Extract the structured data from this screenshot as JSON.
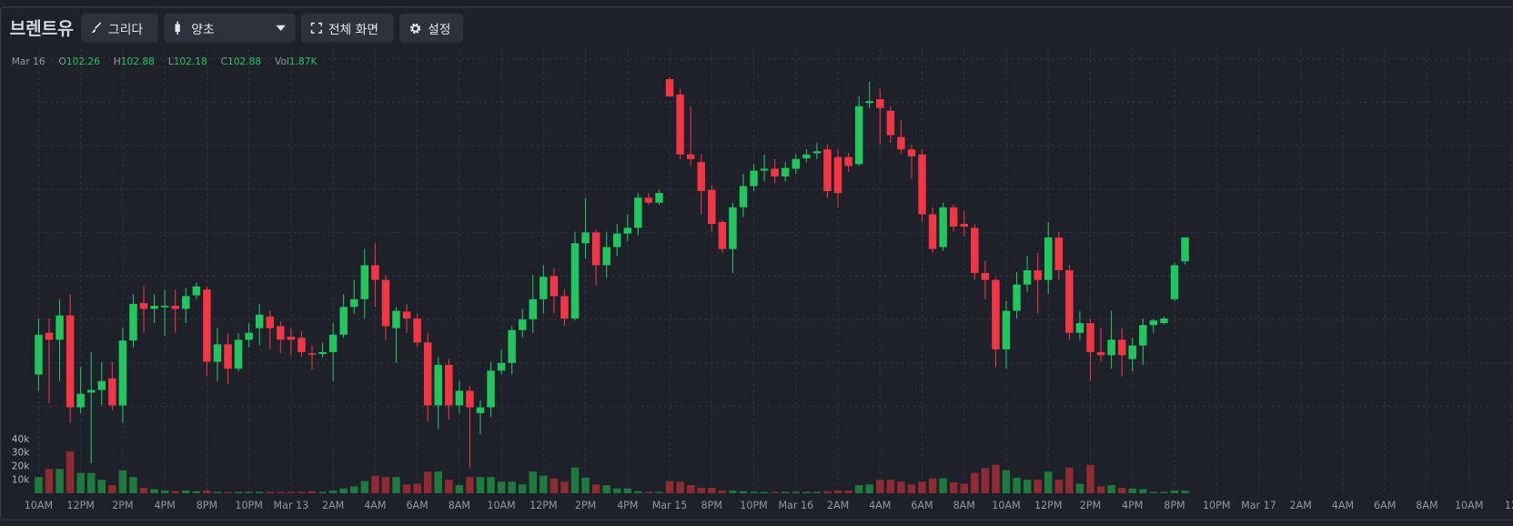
{
  "toolbar": {
    "title": "브렌트유",
    "draw": "그리다",
    "chart_style": "양초",
    "fullscreen": "전체 화면",
    "settings": "설정"
  },
  "legend": {
    "date": "Mar 16",
    "items": [
      {
        "label": "O",
        "value": "102.26"
      },
      {
        "label": "H",
        "value": "102.88"
      },
      {
        "label": "L",
        "value": "102.18"
      },
      {
        "label": "C",
        "value": "102.88"
      },
      {
        "label": "Vol",
        "value": "1.87K"
      }
    ]
  },
  "chart_data": {
    "type": "candlestick",
    "x": [
      "10AM",
      null,
      null,
      null,
      "12PM",
      null,
      null,
      null,
      "2PM",
      null,
      null,
      null,
      "4PM",
      null,
      null,
      null,
      "8PM",
      null,
      null,
      null,
      "10PM",
      null,
      null,
      null,
      "Mar 13",
      null,
      null,
      null,
      "2AM",
      null,
      null,
      null,
      "4AM",
      null,
      null,
      null,
      "6AM",
      null,
      null,
      null,
      "8AM",
      null,
      null,
      null,
      "10AM",
      null,
      null,
      null,
      "12PM",
      null,
      null,
      null,
      "2PM",
      null,
      null,
      null,
      "4PM",
      null,
      null,
      null,
      "Mar 15",
      null,
      null,
      null,
      "8PM",
      null,
      null,
      null,
      "10PM",
      null,
      null,
      null,
      "Mar 16",
      null,
      null,
      null,
      "2AM",
      null,
      null,
      null,
      "4AM",
      null,
      null,
      null,
      "6AM",
      null,
      null,
      null,
      "8AM",
      null,
      null,
      null,
      "10AM",
      null,
      null,
      null,
      "12PM",
      null,
      null,
      null,
      "2PM",
      null,
      null,
      null,
      "4PM",
      null,
      null,
      null,
      "8PM",
      null,
      null,
      null,
      "10PM",
      null,
      null,
      null,
      "Mar 17",
      null,
      null,
      null,
      "2AM",
      null,
      null,
      null,
      "4AM",
      null,
      null,
      null,
      "6AM",
      null,
      null,
      null,
      "8AM",
      null,
      null,
      null,
      "10AM",
      null,
      null,
      null,
      "12"
    ],
    "open": [
      99.33,
      100.41,
      100.23,
      100.86,
      98.48,
      98.86,
      98.93,
      99.23,
      98.53,
      100.21,
      101.18,
      101.03,
      101.08,
      101.11,
      101.03,
      101.38,
      101.53,
      99.66,
      100.11,
      99.48,
      100.23,
      100.53,
      100.83,
      100.58,
      100.31,
      100.28,
      99.88,
      99.86,
      99.91,
      100.36,
      101.08,
      101.28,
      102.16,
      101.78,
      100.53,
      100.96,
      100.78,
      100.16,
      98.53,
      99.58,
      98.53,
      98.91,
      98.33,
      98.48,
      99.43,
      99.63,
      100.48,
      100.76,
      101.28,
      101.88,
      101.36,
      100.78,
      102.73,
      103.01,
      102.16,
      102.63,
      102.98,
      103.13,
      103.91,
      103.78,
      106.98,
      106.58,
      105.03,
      104.83,
      104.11,
      103.28,
      102.58,
      103.66,
      104.21,
      104.61,
      104.66,
      104.46,
      104.66,
      104.93,
      105.06,
      105.16,
      104.96,
      104.96,
      104.78,
      106.36,
      106.46,
      106.16,
      105.48,
      105.16,
      105.03,
      103.48,
      102.63,
      103.66,
      103.23,
      103.13,
      101.96,
      101.78,
      99.98,
      100.98,
      101.66,
      102.03,
      101.78,
      102.88,
      102.03,
      100.41,
      100.66,
      99.91,
      99.83,
      100.23,
      99.73,
      100.08,
      100.61,
      100.66,
      101.28,
      102.26,
      null,
      null,
      null,
      null,
      null,
      null,
      null,
      null,
      null,
      null,
      null,
      null,
      null,
      null,
      null,
      null,
      null,
      null,
      null,
      null,
      null,
      null,
      null,
      null,
      null,
      null,
      null,
      null,
      null,
      null,
      null
    ],
    "high": [
      100.78,
      100.78,
      101.28,
      101.41,
      99.53,
      99.91,
      99.66,
      99.66,
      100.53,
      101.41,
      101.63,
      101.41,
      101.53,
      101.53,
      101.58,
      101.71,
      101.61,
      100.53,
      100.41,
      100.41,
      100.66,
      101.16,
      100.98,
      100.71,
      100.53,
      100.46,
      100.08,
      100.16,
      100.66,
      101.41,
      101.78,
      102.58,
      102.73,
      101.91,
      101.08,
      101.16,
      100.91,
      100.41,
      99.78,
      99.73,
      99.16,
      99.03,
      98.66,
      99.66,
      99.98,
      100.58,
      101.03,
      101.91,
      102.16,
      102.08,
      101.53,
      103.03,
      103.91,
      103.08,
      103.03,
      103.23,
      103.48,
      104.03,
      104.03,
      104.11,
      107.03,
      106.73,
      106.28,
      105.03,
      104.23,
      103.33,
      103.78,
      104.53,
      104.78,
      105.03,
      104.91,
      104.83,
      105.03,
      105.16,
      105.33,
      105.28,
      105.16,
      105.08,
      106.53,
      106.91,
      106.73,
      106.28,
      105.91,
      105.28,
      105.16,
      103.66,
      103.78,
      103.73,
      103.58,
      103.23,
      102.28,
      101.83,
      101.23,
      101.98,
      102.41,
      102.48,
      103.28,
      103.03,
      102.16,
      100.98,
      100.78,
      100.53,
      100.98,
      100.53,
      100.28,
      100.78,
      100.78,
      100.83,
      102.23,
      102.88,
      null,
      null,
      null,
      null,
      null,
      null,
      null,
      null,
      null,
      null,
      null,
      null,
      null,
      null,
      null,
      null,
      null,
      null,
      null,
      null,
      null,
      null,
      null,
      null,
      null,
      null,
      null,
      null,
      null,
      null,
      null
    ],
    "low": [
      98.91,
      98.58,
      99.16,
      98.08,
      98.33,
      97.03,
      98.53,
      98.41,
      98.08,
      100.03,
      100.41,
      100.66,
      100.33,
      100.41,
      100.66,
      101.28,
      99.28,
      99.16,
      99.08,
      99.41,
      100.03,
      100.08,
      99.98,
      99.88,
      99.83,
      99.78,
      99.46,
      99.78,
      99.16,
      100.28,
      100.91,
      100.78,
      101.08,
      100.23,
      99.63,
      100.41,
      100.03,
      98.11,
      97.91,
      98.16,
      98.33,
      96.91,
      97.78,
      98.23,
      99.33,
      99.33,
      100.28,
      100.41,
      100.91,
      100.91,
      100.58,
      100.73,
      102.33,
      101.63,
      101.83,
      102.41,
      102.78,
      102.93,
      103.73,
      103.73,
      106.53,
      104.91,
      104.73,
      103.48,
      103.03,
      102.48,
      101.96,
      103.41,
      104.08,
      104.33,
      104.28,
      104.33,
      104.53,
      104.83,
      104.91,
      103.91,
      103.66,
      104.58,
      104.73,
      106.23,
      105.28,
      105.33,
      105.03,
      104.41,
      103.28,
      102.48,
      102.53,
      103.03,
      102.91,
      101.78,
      101.28,
      99.53,
      99.48,
      100.78,
      101.48,
      100.91,
      101.41,
      101.78,
      100.23,
      100.23,
      99.16,
      99.66,
      99.48,
      99.28,
      99.41,
      99.58,
      100.41,
      100.63,
      101.23,
      102.18,
      null,
      null,
      null,
      null,
      null,
      null,
      null,
      null,
      null,
      null,
      null,
      null,
      null,
      null,
      null,
      null,
      null,
      null,
      null,
      null,
      null,
      null,
      null,
      null,
      null,
      null,
      null,
      null,
      null,
      null,
      null
    ],
    "close": [
      100.36,
      100.23,
      100.86,
      98.48,
      98.83,
      98.93,
      99.16,
      98.53,
      100.21,
      101.16,
      101.03,
      101.11,
      101.11,
      101.03,
      101.36,
      101.61,
      99.66,
      100.11,
      99.48,
      100.23,
      100.41,
      100.88,
      100.53,
      100.23,
      100.23,
      99.91,
      99.86,
      99.91,
      100.36,
      101.08,
      101.28,
      102.16,
      101.78,
      100.58,
      100.98,
      100.78,
      100.16,
      98.53,
      99.58,
      98.53,
      98.91,
      98.48,
      98.48,
      99.43,
      99.63,
      100.48,
      100.76,
      101.28,
      101.86,
      101.36,
      100.78,
      102.73,
      103.01,
      102.16,
      102.63,
      102.98,
      103.13,
      103.91,
      103.78,
      104.03,
      106.53,
      105.03,
      104.91,
      104.08,
      103.23,
      102.58,
      103.66,
      104.21,
      104.61,
      104.66,
      104.46,
      104.68,
      104.91,
      105.03,
      105.11,
      104.08,
      104.03,
      104.73,
      106.28,
      106.41,
      106.23,
      105.53,
      105.16,
      104.98,
      103.48,
      102.58,
      103.66,
      103.16,
      103.16,
      101.96,
      101.78,
      99.98,
      100.98,
      101.66,
      102.03,
      101.78,
      102.88,
      102.03,
      100.41,
      100.66,
      99.91,
      99.83,
      100.23,
      99.83,
      100.08,
      100.61,
      100.73,
      100.78,
      102.16,
      102.88,
      null,
      null,
      null,
      null,
      null,
      null,
      null,
      null,
      null,
      null,
      null,
      null,
      null,
      null,
      null,
      null,
      null,
      null,
      null,
      null,
      null,
      null,
      null,
      null,
      null,
      null,
      null,
      null,
      null,
      null,
      null
    ],
    "volume": [
      12000,
      18000,
      18000,
      31000,
      15000,
      15000,
      10000,
      6000,
      17000,
      12000,
      4000,
      3000,
      2000,
      1500,
      2000,
      1500,
      2000,
      1000,
      1000,
      1000,
      1000,
      1000,
      1000,
      1000,
      1000,
      1000,
      1500,
      1000,
      2000,
      3500,
      5000,
      9000,
      13000,
      12000,
      12000,
      6500,
      7000,
      16000,
      16000,
      10000,
      6000,
      12000,
      12000,
      12000,
      8500,
      8500,
      6500,
      16000,
      13000,
      11000,
      8500,
      19000,
      11500,
      6500,
      6000,
      3500,
      3500,
      1500,
      1000,
      1000,
      9000,
      8500,
      6000,
      4000,
      4000,
      2000,
      2000,
      1500,
      1000,
      1000,
      1000,
      1000,
      1000,
      1000,
      1000,
      1500,
      2000,
      2000,
      6000,
      6500,
      10000,
      10000,
      8500,
      6500,
      8500,
      11000,
      11000,
      8000,
      7000,
      15000,
      18500,
      21000,
      17000,
      11500,
      10000,
      10000,
      16000,
      10000,
      19000,
      7000,
      21000,
      5000,
      6000,
      4000,
      3500,
      3000,
      1000,
      1000,
      2000,
      1870,
      null,
      null,
      null,
      null,
      null,
      null,
      null,
      null,
      null,
      null,
      null,
      null,
      null,
      null,
      null,
      null,
      null,
      null,
      null,
      null,
      null,
      null,
      null,
      null,
      null,
      null,
      null,
      null,
      null,
      null,
      null
    ],
    "ylim": [
      96.53,
      108.03
    ],
    "volume_ylim": [
      0,
      40000
    ],
    "volume_yticks": [
      {
        "value": 10000,
        "label": "10k"
      },
      {
        "value": 20000,
        "label": "20k"
      },
      {
        "value": 30000,
        "label": "30k"
      },
      {
        "value": 40000,
        "label": "40k"
      }
    ],
    "grid": true,
    "colors": {
      "up": "#22c55e",
      "down": "#f23645",
      "volume_up": "#1f7a3d",
      "volume_down": "#8e2b33"
    }
  }
}
